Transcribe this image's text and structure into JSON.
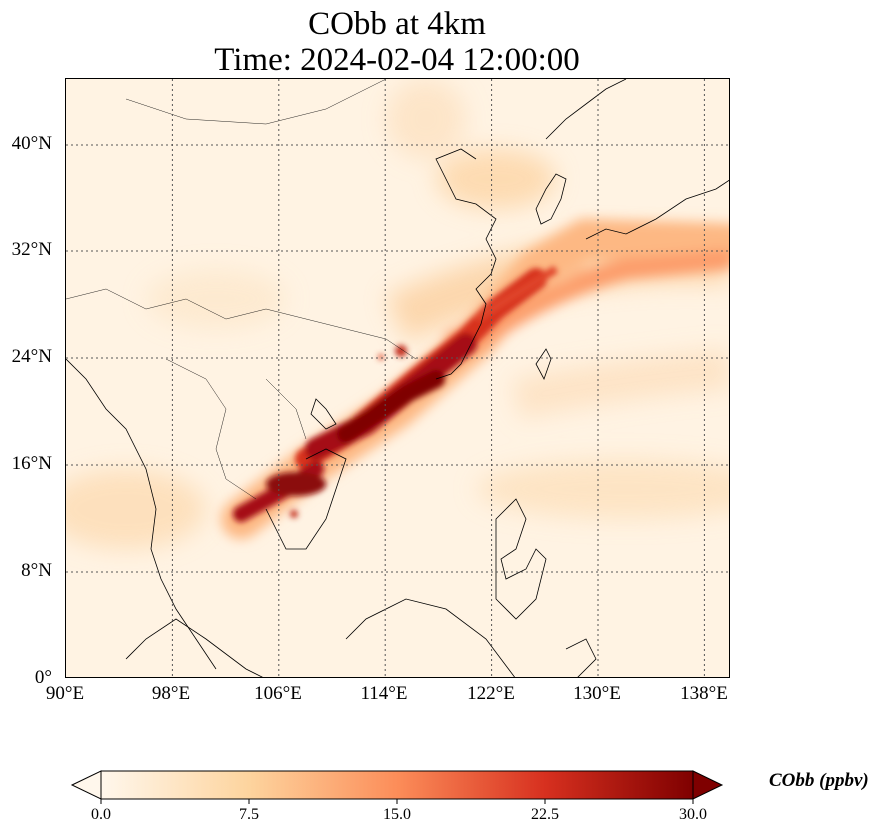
{
  "title": {
    "line1": "CObb at 4km",
    "line2": "Time: 2024-02-04 12:00:00"
  },
  "map": {
    "lon_range": [
      90,
      140
    ],
    "lat_range": [
      0,
      44
    ],
    "gridlines": "dotted",
    "x_ticks": [
      "90°E",
      "98°E",
      "106°E",
      "114°E",
      "122°E",
      "130°E",
      "138°E"
    ],
    "y_ticks": [
      "0°",
      "8°N",
      "16°N",
      "24°N",
      "32°N",
      "40°N"
    ],
    "field": "CObb concentration",
    "plume_description": "dark red plume from Cambodia/Vietnam through southern China toward Japan"
  },
  "colorbar": {
    "label": "CObb (ppbv)",
    "ticks": [
      "0.0",
      "7.5",
      "15.0",
      "22.5",
      "30.0"
    ],
    "min": 0.0,
    "max": 30.0,
    "extend": "both",
    "colormap": "OrRd",
    "colors": [
      "#fff7ec",
      "#fdd49e",
      "#fc8d59",
      "#d7301f",
      "#7f0000"
    ]
  }
}
